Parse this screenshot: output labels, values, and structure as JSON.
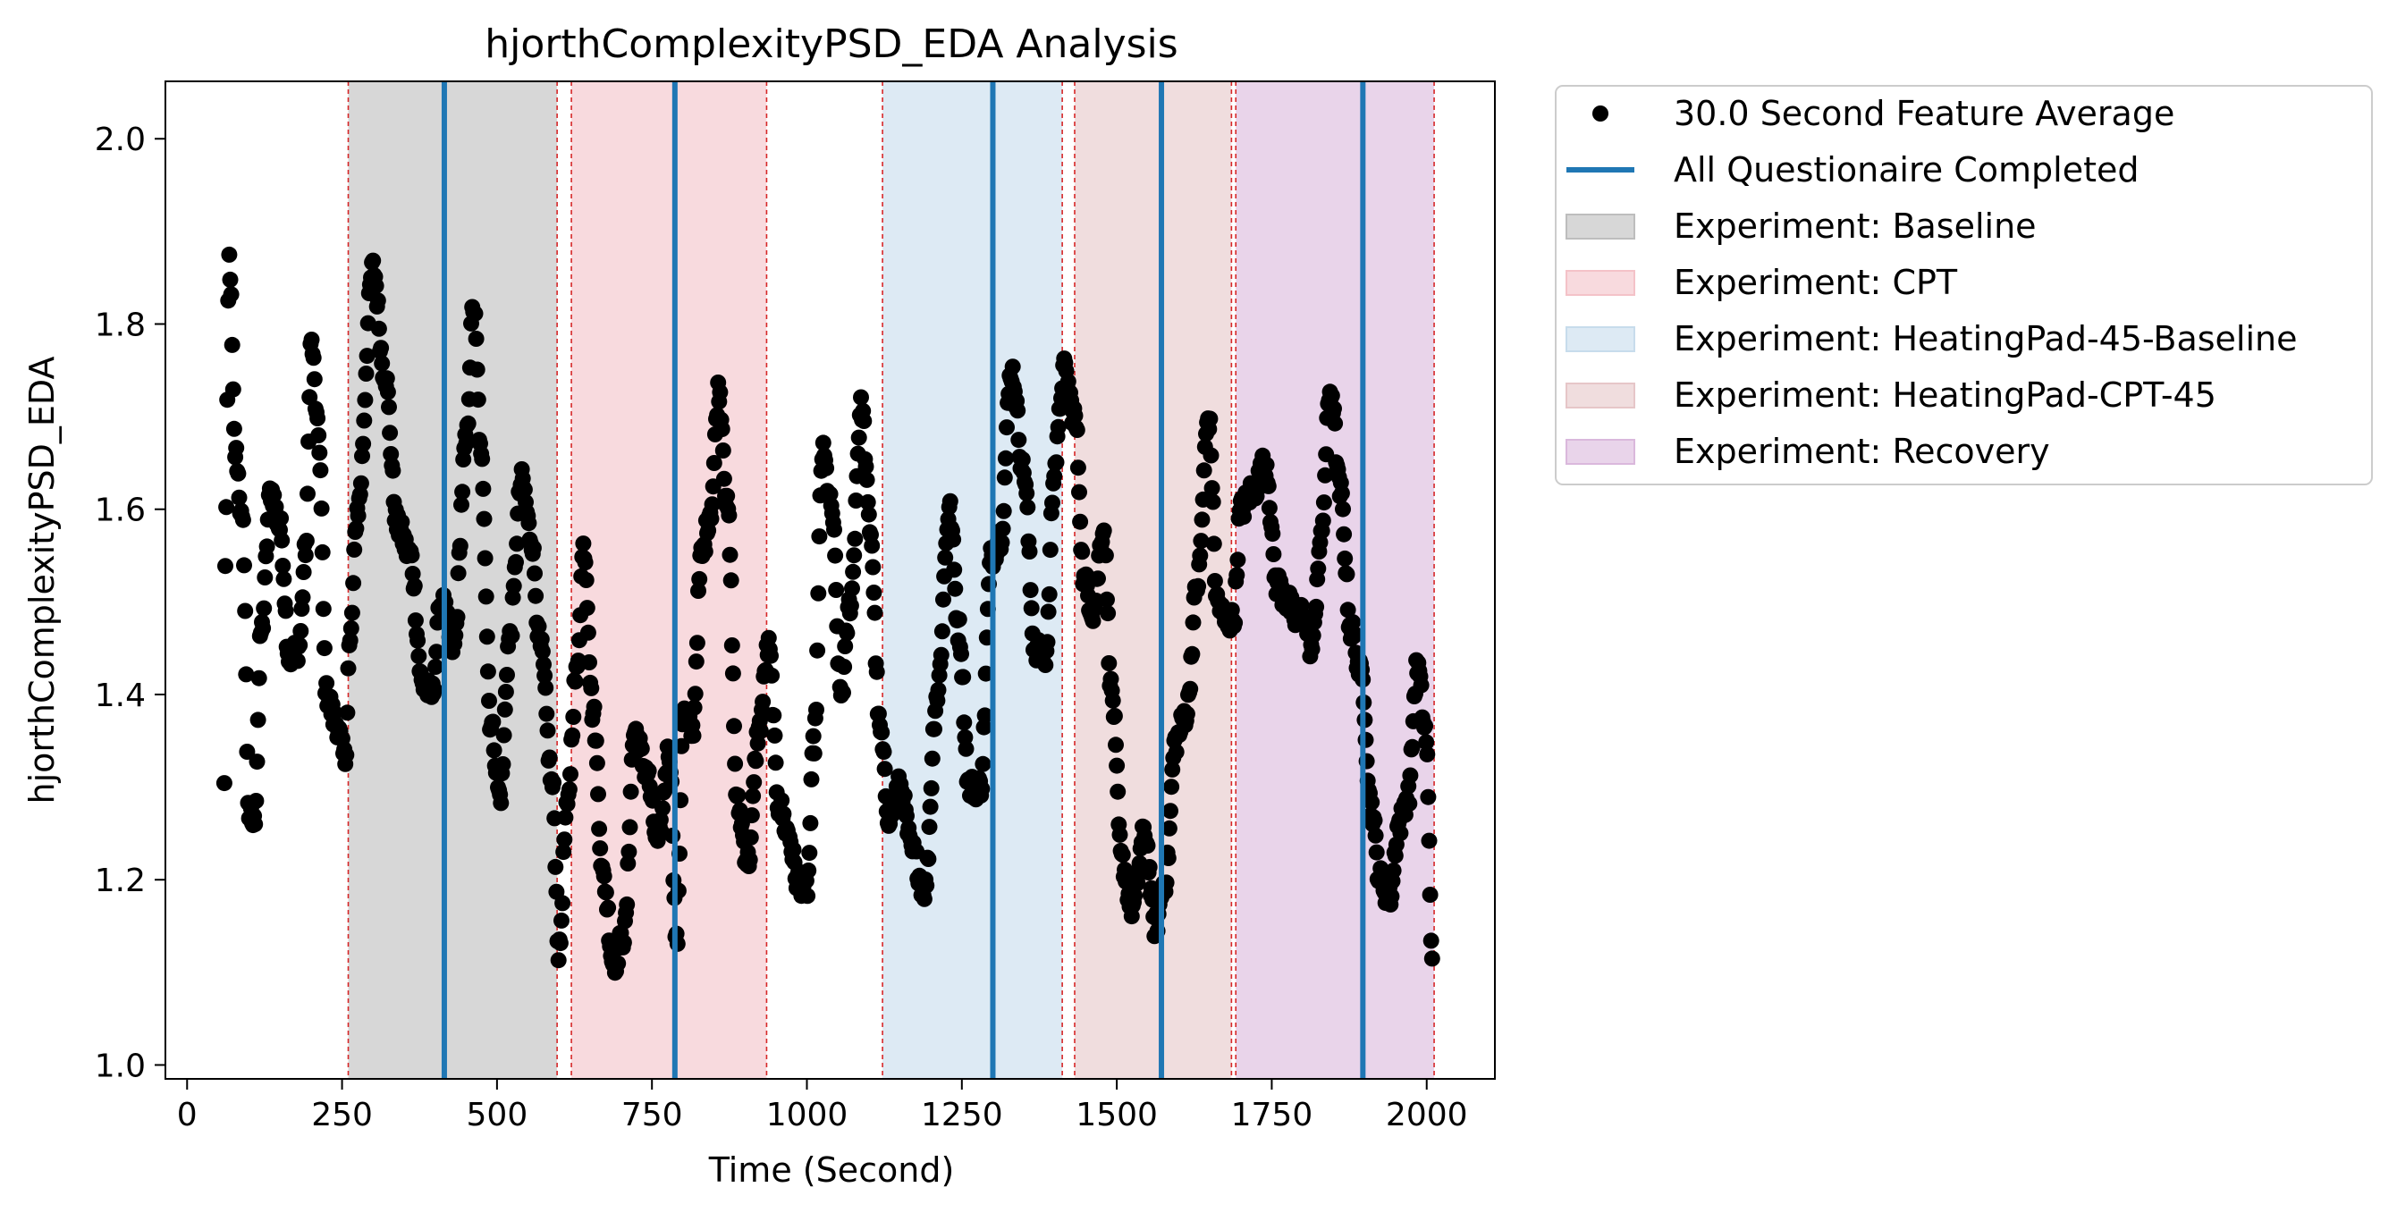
{
  "chart_data": {
    "type": "scatter",
    "title": "hjorthComplexityPSD_EDA Analysis",
    "xlabel": "Time (Second)",
    "ylabel": "hjorthComplexityPSD_EDA",
    "xlim": [
      -35,
      2110
    ],
    "ylim": [
      0.985,
      2.062
    ],
    "xticks": [
      0,
      250,
      500,
      750,
      1000,
      1250,
      1500,
      1750,
      2000
    ],
    "yticks": [
      1.0,
      1.2,
      1.4,
      1.6,
      1.8,
      2.0
    ],
    "xtick_labels": [
      "0",
      "250",
      "500",
      "750",
      "1000",
      "1250",
      "1500",
      "1750",
      "2000"
    ],
    "ytick_labels": [
      "1.0",
      "1.2",
      "1.4",
      "1.6",
      "1.8",
      "2.0"
    ],
    "grid": false,
    "legend_position": "outside-right-top",
    "series": [
      {
        "name": "30.0 Second Feature Average",
        "marker": "circle",
        "color": "#000000",
        "x_range": [
          60,
          2010
        ],
        "keypoints": [
          [
            60,
            1.3
          ],
          [
            62,
            1.57
          ],
          [
            68,
            1.87
          ],
          [
            78,
            1.66
          ],
          [
            90,
            1.58
          ],
          [
            100,
            1.27
          ],
          [
            108,
            1.26
          ],
          [
            120,
            1.47
          ],
          [
            135,
            1.62
          ],
          [
            150,
            1.58
          ],
          [
            165,
            1.44
          ],
          [
            180,
            1.45
          ],
          [
            192,
            1.56
          ],
          [
            200,
            1.78
          ],
          [
            212,
            1.68
          ],
          [
            225,
            1.4
          ],
          [
            240,
            1.37
          ],
          [
            255,
            1.33
          ],
          [
            262,
            1.45
          ],
          [
            275,
            1.6
          ],
          [
            300,
            1.86
          ],
          [
            318,
            1.75
          ],
          [
            340,
            1.58
          ],
          [
            360,
            1.55
          ],
          [
            380,
            1.41
          ],
          [
            395,
            1.4
          ],
          [
            410,
            1.5
          ],
          [
            430,
            1.45
          ],
          [
            450,
            1.67
          ],
          [
            462,
            1.82
          ],
          [
            475,
            1.65
          ],
          [
            490,
            1.37
          ],
          [
            505,
            1.29
          ],
          [
            520,
            1.46
          ],
          [
            540,
            1.63
          ],
          [
            555,
            1.57
          ],
          [
            570,
            1.45
          ],
          [
            590,
            1.3
          ],
          [
            600,
            1.12
          ],
          [
            612,
            1.27
          ],
          [
            628,
            1.42
          ],
          [
            640,
            1.56
          ],
          [
            655,
            1.38
          ],
          [
            672,
            1.2
          ],
          [
            688,
            1.11
          ],
          [
            705,
            1.14
          ],
          [
            722,
            1.36
          ],
          [
            740,
            1.32
          ],
          [
            760,
            1.24
          ],
          [
            778,
            1.34
          ],
          [
            790,
            1.13
          ],
          [
            800,
            1.38
          ],
          [
            815,
            1.36
          ],
          [
            830,
            1.55
          ],
          [
            845,
            1.6
          ],
          [
            858,
            1.73
          ],
          [
            872,
            1.6
          ],
          [
            888,
            1.28
          ],
          [
            905,
            1.22
          ],
          [
            922,
            1.36
          ],
          [
            938,
            1.45
          ],
          [
            955,
            1.28
          ],
          [
            970,
            1.25
          ],
          [
            985,
            1.2
          ],
          [
            1000,
            1.19
          ],
          [
            1012,
            1.35
          ],
          [
            1025,
            1.66
          ],
          [
            1040,
            1.6
          ],
          [
            1055,
            1.4
          ],
          [
            1070,
            1.5
          ],
          [
            1088,
            1.71
          ],
          [
            1102,
            1.58
          ],
          [
            1118,
            1.36
          ],
          [
            1132,
            1.27
          ],
          [
            1150,
            1.3
          ],
          [
            1170,
            1.23
          ],
          [
            1190,
            1.19
          ],
          [
            1210,
            1.4
          ],
          [
            1230,
            1.6
          ],
          [
            1245,
            1.47
          ],
          [
            1262,
            1.3
          ],
          [
            1280,
            1.3
          ],
          [
            1298,
            1.55
          ],
          [
            1312,
            1.57
          ],
          [
            1330,
            1.75
          ],
          [
            1350,
            1.64
          ],
          [
            1368,
            1.45
          ],
          [
            1385,
            1.44
          ],
          [
            1400,
            1.65
          ],
          [
            1415,
            1.75
          ],
          [
            1432,
            1.7
          ],
          [
            1448,
            1.52
          ],
          [
            1462,
            1.49
          ],
          [
            1478,
            1.58
          ],
          [
            1492,
            1.4
          ],
          [
            1508,
            1.22
          ],
          [
            1525,
            1.17
          ],
          [
            1545,
            1.25
          ],
          [
            1562,
            1.15
          ],
          [
            1578,
            1.2
          ],
          [
            1595,
            1.35
          ],
          [
            1612,
            1.38
          ],
          [
            1630,
            1.52
          ],
          [
            1648,
            1.7
          ],
          [
            1662,
            1.5
          ],
          [
            1675,
            1.48
          ],
          [
            1688,
            1.48
          ],
          [
            1700,
            1.6
          ],
          [
            1720,
            1.62
          ],
          [
            1740,
            1.65
          ],
          [
            1758,
            1.52
          ],
          [
            1775,
            1.5
          ],
          [
            1790,
            1.48
          ],
          [
            1800,
            1.49
          ],
          [
            1815,
            1.45
          ],
          [
            1828,
            1.56
          ],
          [
            1845,
            1.73
          ],
          [
            1860,
            1.62
          ],
          [
            1878,
            1.47
          ],
          [
            1895,
            1.42
          ],
          [
            1910,
            1.28
          ],
          [
            1925,
            1.2
          ],
          [
            1940,
            1.18
          ],
          [
            1955,
            1.26
          ],
          [
            1970,
            1.29
          ],
          [
            1985,
            1.43
          ],
          [
            1998,
            1.36
          ],
          [
            2010,
            1.11
          ]
        ]
      }
    ],
    "questionnaire_lines": {
      "name": "All Questionaire Completed",
      "color": "#1f77b4",
      "x": [
        415,
        787,
        1300,
        1572,
        1897
      ]
    },
    "experiment_spans": [
      {
        "name": "Experiment: Baseline",
        "color": "#bdbdbd",
        "x_start": 260,
        "x_end": 597
      },
      {
        "name": "Experiment: CPT",
        "color": "#f4c2c8",
        "x_start": 620,
        "x_end": 935
      },
      {
        "name": "Experiment: HeatingPad-45-Baseline",
        "color": "#c7dcec",
        "x_start": 1122,
        "x_end": 1412
      },
      {
        "name": "Experiment: HeatingPad-CPT-45",
        "color": "#e6c6c8",
        "x_start": 1432,
        "x_end": 1685
      },
      {
        "name": "Experiment: Recovery",
        "color": "#dab8dc",
        "x_start": 1692,
        "x_end": 2012
      }
    ],
    "boundary_lines": {
      "color": "#d62728",
      "x": [
        260,
        597,
        620,
        935,
        1122,
        1412,
        1432,
        1685,
        1692,
        2012
      ]
    },
    "legend": [
      {
        "label": "30.0 Second Feature Average",
        "kind": "marker",
        "color": "#000000"
      },
      {
        "label": "All Questionaire Completed",
        "kind": "line",
        "color": "#1f77b4"
      },
      {
        "label": "Experiment: Baseline",
        "kind": "patch",
        "color": "#bdbdbd"
      },
      {
        "label": "Experiment: CPT",
        "kind": "patch",
        "color": "#f4c2c8"
      },
      {
        "label": "Experiment: HeatingPad-45-Baseline",
        "kind": "patch",
        "color": "#c7dcec"
      },
      {
        "label": "Experiment: HeatingPad-CPT-45",
        "kind": "patch",
        "color": "#e6c6c8"
      },
      {
        "label": "Experiment: Recovery",
        "kind": "patch",
        "color": "#dab8dc"
      }
    ]
  }
}
